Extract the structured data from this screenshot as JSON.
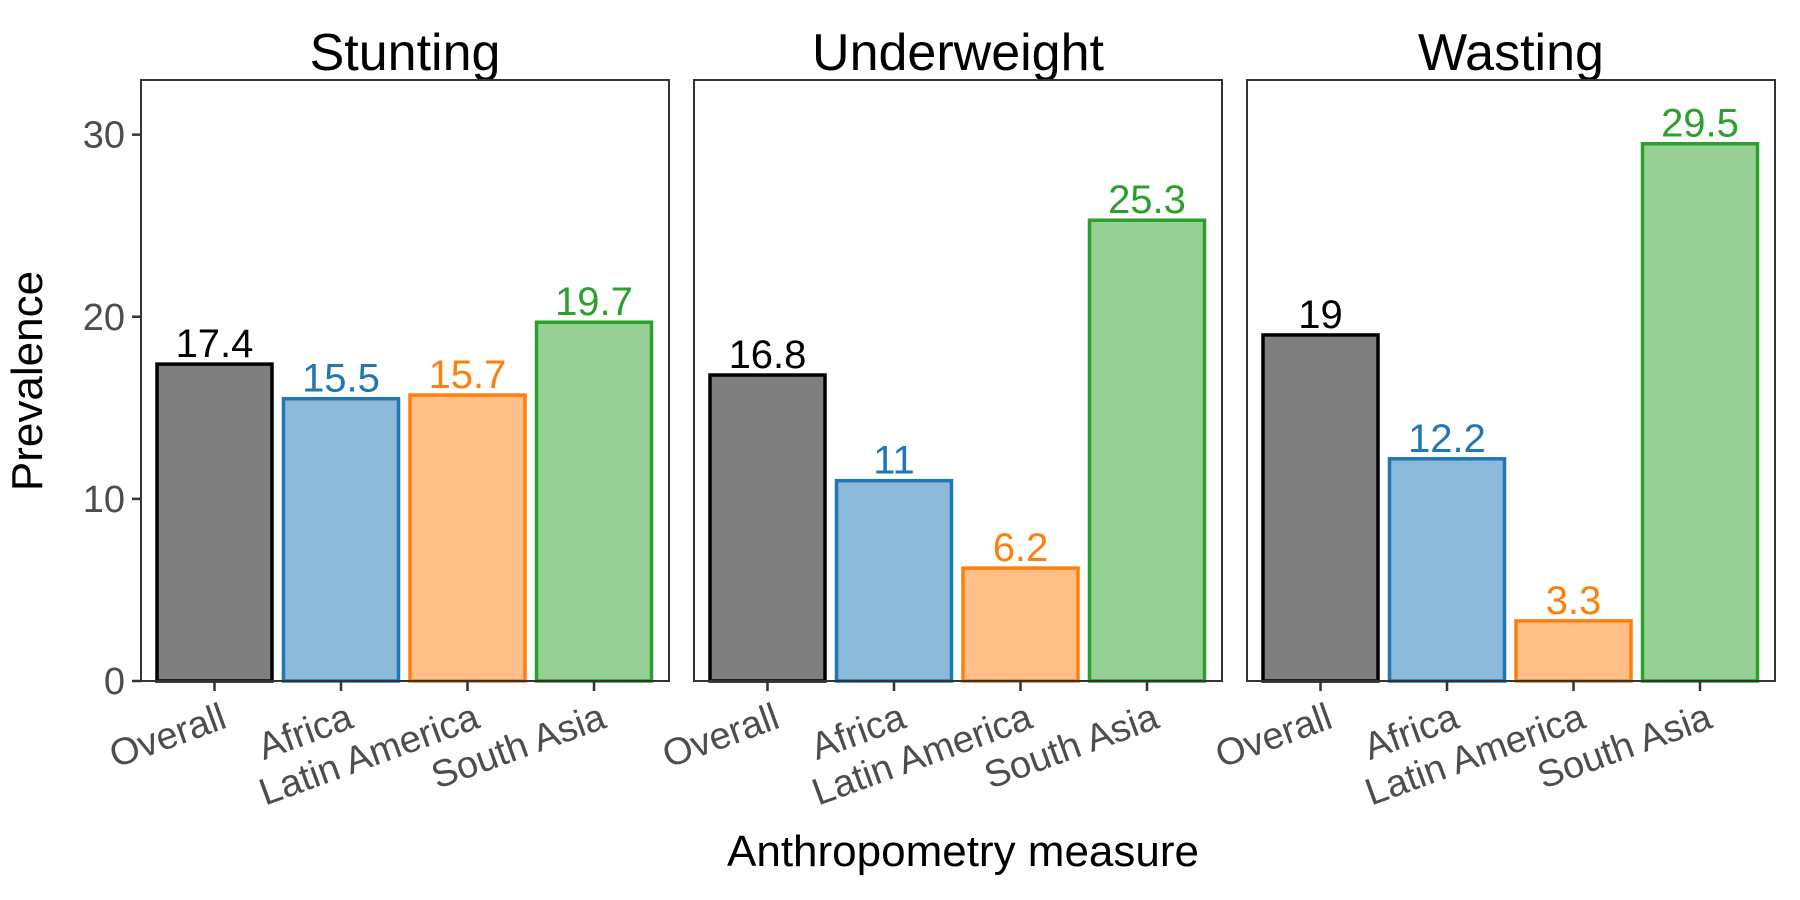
{
  "chart_data": {
    "type": "bar",
    "xlabel": "Anthropometry measure",
    "ylabel": "Prevalence",
    "ylim": [
      0,
      33
    ],
    "yticks": [
      0,
      10,
      20,
      30
    ],
    "categories": [
      "Overall",
      "Africa",
      "Latin America",
      "South Asia"
    ],
    "colors": {
      "Overall": {
        "fill": "#7f7f7f",
        "stroke": "#000000",
        "label": "#000000"
      },
      "Africa": {
        "fill": "#8db9db",
        "stroke": "#1f77b4",
        "label": "#1f77b4"
      },
      "Latin America": {
        "fill": "#ffbf86",
        "stroke": "#ff7f0e",
        "label": "#ff7f0e"
      },
      "South Asia": {
        "fill": "#96d094",
        "stroke": "#2ca02c",
        "label": "#2ca02c"
      }
    },
    "panels": [
      {
        "title": "Stunting",
        "values": [
          17.4,
          15.5,
          15.7,
          19.7
        ],
        "labels": [
          "17.4",
          "15.5",
          "15.7",
          "19.7"
        ]
      },
      {
        "title": "Underweight",
        "values": [
          16.8,
          11,
          6.2,
          25.3
        ],
        "labels": [
          "16.8",
          "11",
          "6.2",
          "25.3"
        ]
      },
      {
        "title": "Wasting",
        "values": [
          19,
          12.2,
          3.3,
          29.5
        ],
        "labels": [
          "19",
          "12.2",
          "3.3",
          "29.5"
        ]
      }
    ],
    "grid": false,
    "legend": "none"
  }
}
